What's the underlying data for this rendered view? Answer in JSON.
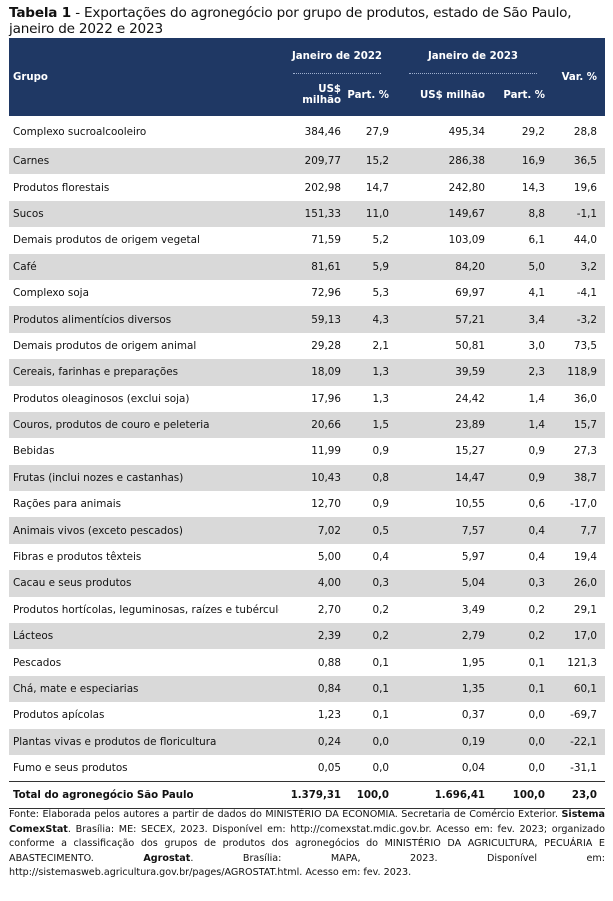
{
  "caption": {
    "label": "Tabela 1",
    "text": " - Exportações do agronegócio por grupo de produtos, estado de São Paulo, janeiro de 2022 e 2023"
  },
  "header": {
    "grupo": "Grupo",
    "period_2022": "Janeiro de 2022",
    "period_2023": "Janeiro de 2023",
    "var": "Var. %",
    "usd": "US$ milhão",
    "part": "Part. %"
  },
  "rows": [
    {
      "grupo": "Complexo sucroalcooleiro",
      "usd_2022": "384,46",
      "part_2022": "27,9",
      "usd_2023": "495,34",
      "part_2023": "29,2",
      "var": "28,8"
    },
    {
      "grupo": "Carnes",
      "usd_2022": "209,77",
      "part_2022": "15,2",
      "usd_2023": "286,38",
      "part_2023": "16,9",
      "var": "36,5"
    },
    {
      "grupo": "Produtos florestais",
      "usd_2022": "202,98",
      "part_2022": "14,7",
      "usd_2023": "242,80",
      "part_2023": "14,3",
      "var": "19,6"
    },
    {
      "grupo": "Sucos",
      "usd_2022": "151,33",
      "part_2022": "11,0",
      "usd_2023": "149,67",
      "part_2023": "8,8",
      "var": "-1,1"
    },
    {
      "grupo": "Demais produtos de origem vegetal",
      "usd_2022": "71,59",
      "part_2022": "5,2",
      "usd_2023": "103,09",
      "part_2023": "6,1",
      "var": "44,0"
    },
    {
      "grupo": "Café",
      "usd_2022": "81,61",
      "part_2022": "5,9",
      "usd_2023": "84,20",
      "part_2023": "5,0",
      "var": "3,2"
    },
    {
      "grupo": "Complexo soja",
      "usd_2022": "72,96",
      "part_2022": "5,3",
      "usd_2023": "69,97",
      "part_2023": "4,1",
      "var": "-4,1"
    },
    {
      "grupo": "Produtos alimentícios diversos",
      "usd_2022": "59,13",
      "part_2022": "4,3",
      "usd_2023": "57,21",
      "part_2023": "3,4",
      "var": "-3,2"
    },
    {
      "grupo": "Demais produtos de origem animal",
      "usd_2022": "29,28",
      "part_2022": "2,1",
      "usd_2023": "50,81",
      "part_2023": "3,0",
      "var": "73,5"
    },
    {
      "grupo": "Cereais, farinhas e preparações",
      "usd_2022": "18,09",
      "part_2022": "1,3",
      "usd_2023": "39,59",
      "part_2023": "2,3",
      "var": "118,9"
    },
    {
      "grupo": "Produtos oleaginosos (exclui soja)",
      "usd_2022": "17,96",
      "part_2022": "1,3",
      "usd_2023": "24,42",
      "part_2023": "1,4",
      "var": "36,0"
    },
    {
      "grupo": "Couros, produtos de couro e peleteria",
      "usd_2022": "20,66",
      "part_2022": "1,5",
      "usd_2023": "23,89",
      "part_2023": "1,4",
      "var": "15,7"
    },
    {
      "grupo": "Bebidas",
      "usd_2022": "11,99",
      "part_2022": "0,9",
      "usd_2023": "15,27",
      "part_2023": "0,9",
      "var": "27,3"
    },
    {
      "grupo": "Frutas (inclui nozes e castanhas)",
      "usd_2022": "10,43",
      "part_2022": "0,8",
      "usd_2023": "14,47",
      "part_2023": "0,9",
      "var": "38,7"
    },
    {
      "grupo": "Rações para animais",
      "usd_2022": "12,70",
      "part_2022": "0,9",
      "usd_2023": "10,55",
      "part_2023": "0,6",
      "var": "-17,0"
    },
    {
      "grupo": "Animais vivos (exceto pescados)",
      "usd_2022": "7,02",
      "part_2022": "0,5",
      "usd_2023": "7,57",
      "part_2023": "0,4",
      "var": "7,7"
    },
    {
      "grupo": "Fibras e produtos têxteis",
      "usd_2022": "5,00",
      "part_2022": "0,4",
      "usd_2023": "5,97",
      "part_2023": "0,4",
      "var": "19,4"
    },
    {
      "grupo": "Cacau e seus produtos",
      "usd_2022": "4,00",
      "part_2022": "0,3",
      "usd_2023": "5,04",
      "part_2023": "0,3",
      "var": "26,0"
    },
    {
      "grupo": "Produtos hortícolas, leguminosas, raízes e tubérculos",
      "usd_2022": "2,70",
      "part_2022": "0,2",
      "usd_2023": "3,49",
      "part_2023": "0,2",
      "var": "29,1"
    },
    {
      "grupo": "Lácteos",
      "usd_2022": "2,39",
      "part_2022": "0,2",
      "usd_2023": "2,79",
      "part_2023": "0,2",
      "var": "17,0"
    },
    {
      "grupo": "Pescados",
      "usd_2022": "0,88",
      "part_2022": "0,1",
      "usd_2023": "1,95",
      "part_2023": "0,1",
      "var": "121,3"
    },
    {
      "grupo": "Chá, mate e especiarias",
      "usd_2022": "0,84",
      "part_2022": "0,1",
      "usd_2023": "1,35",
      "part_2023": "0,1",
      "var": "60,1"
    },
    {
      "grupo": "Produtos apícolas",
      "usd_2022": "1,23",
      "part_2022": "0,1",
      "usd_2023": "0,37",
      "part_2023": "0,0",
      "var": "-69,7"
    },
    {
      "grupo": "Plantas vivas e produtos de floricultura",
      "usd_2022": "0,24",
      "part_2022": "0,0",
      "usd_2023": "0,19",
      "part_2023": "0,0",
      "var": "-22,1"
    },
    {
      "grupo": "Fumo e seus produtos",
      "usd_2022": "0,05",
      "part_2022": "0,0",
      "usd_2023": "0,04",
      "part_2023": "0,0",
      "var": "-31,1"
    }
  ],
  "total": {
    "grupo": "Total do agronegócio São Paulo",
    "usd_2022": "1.379,31",
    "part_2022": "100,0",
    "usd_2023": "1.696,41",
    "part_2023": "100,0",
    "var": "23,0"
  },
  "source": {
    "p1": "Fonte: Elaborada pelos autores a partir de dados do MINISTÉRIO DA ECONOMIA. Secretaria de Comércio Exterior. ",
    "b1": "Sistema ComexStat",
    "p2": ". Brasília: ME: SECEX, 2023. Disponível em: http://comexstat.mdic.gov.br. Acesso em: fev. 2023; organizado conforme a classificação dos grupos de produtos dos agronegócios do MINISTÉRIO DA AGRICULTURA, PECUÁRIA E ABASTECIMENTO. ",
    "b2": "Agrostat",
    "p3": ". Brasília: MAPA, 2023. Disponível em: http://sistemasweb.agricultura.gov.br/pages/AGROSTAT.html. Acesso em: fev. 2023."
  },
  "colors": {
    "header_bg": "#1f3864",
    "stripe": "#d9d9d9"
  }
}
